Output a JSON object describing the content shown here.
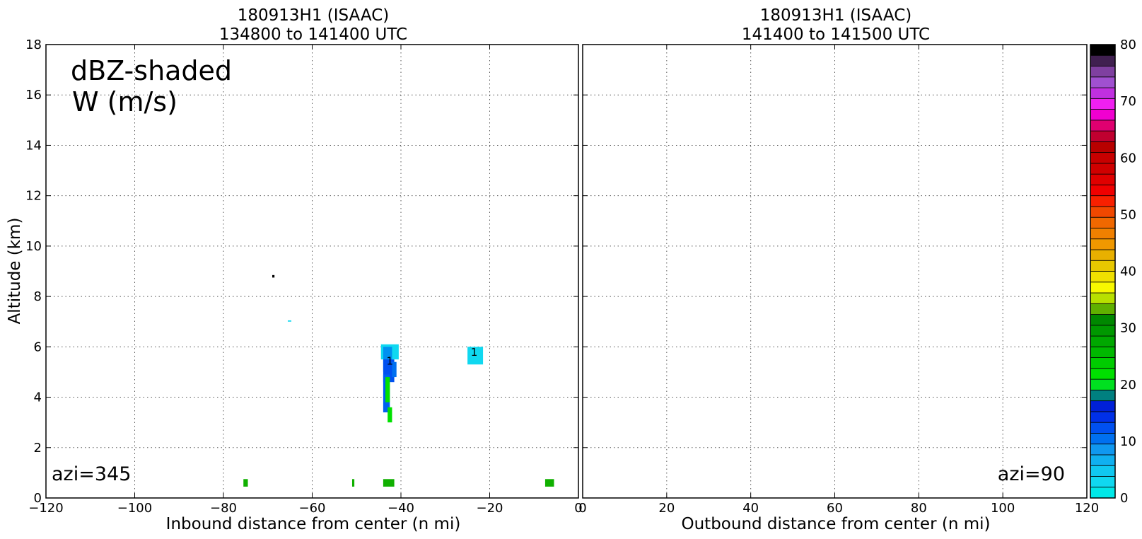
{
  "chart_data": [
    {
      "type": "heatmap",
      "panel": "left",
      "title_line1": "180913H1 (ISAAC)",
      "title_line2": "134800 to 141400 UTC",
      "xlabel": "Inbound distance from center (n mi)",
      "ylabel": "Altitude (km)",
      "xlim": [
        -120,
        0
      ],
      "ylim": [
        0,
        18
      ],
      "xticks": [
        "−120",
        "−100",
        "−80",
        "−60",
        "−40",
        "−20",
        "0"
      ],
      "xtick_values": [
        -120,
        -100,
        -80,
        -60,
        -40,
        -20,
        0
      ],
      "yticks": [
        "0",
        "2",
        "4",
        "6",
        "8",
        "10",
        "12",
        "14",
        "16",
        "18"
      ],
      "ytick_values": [
        0,
        2,
        4,
        6,
        8,
        10,
        12,
        14,
        16,
        18
      ],
      "grid": true,
      "annotation_main_line1": "dBZ-shaded",
      "annotation_main_line2": "W (m/s)",
      "annotation_azi": "azi=345",
      "contour_labels": [
        {
          "text": "1",
          "x": -42.5,
          "y": 5.3
        },
        {
          "text": "1",
          "x": -23.5,
          "y": 5.65
        }
      ],
      "cells": [
        {
          "x0": -44.5,
          "x1": -40.5,
          "y0": 5.5,
          "y1": 6.1,
          "color": "#10d8f0"
        },
        {
          "x0": -44.0,
          "x1": -42.0,
          "y0": 5.0,
          "y1": 6.0,
          "color": "#0090f0"
        },
        {
          "x0": -44.0,
          "x1": -41.5,
          "y0": 4.6,
          "y1": 5.5,
          "color": "#0050f0"
        },
        {
          "x0": -42.0,
          "x1": -41.0,
          "y0": 4.8,
          "y1": 5.4,
          "color": "#0070f0"
        },
        {
          "x0": -44.0,
          "x1": -42.5,
          "y0": 3.4,
          "y1": 4.9,
          "color": "#0060f0"
        },
        {
          "x0": -43.5,
          "x1": -42.5,
          "y0": 3.8,
          "y1": 4.8,
          "color": "#00e000"
        },
        {
          "x0": -43.0,
          "x1": -42.0,
          "y0": 3.0,
          "y1": 3.6,
          "color": "#00e000"
        },
        {
          "x0": -25.0,
          "x1": -21.5,
          "y0": 5.3,
          "y1": 6.0,
          "color": "#10d8f0"
        },
        {
          "x0": -69.0,
          "x1": -68.5,
          "y0": 8.75,
          "y1": 8.85,
          "color": "#000000"
        },
        {
          "x0": -65.5,
          "x1": -64.7,
          "y0": 7.0,
          "y1": 7.05,
          "color": "#10d8f0"
        },
        {
          "x0": -75.5,
          "x1": -74.5,
          "y0": 0.45,
          "y1": 0.75,
          "color": "#10b000"
        },
        {
          "x0": -51.0,
          "x1": -50.5,
          "y0": 0.45,
          "y1": 0.75,
          "color": "#10b000"
        },
        {
          "x0": -44.0,
          "x1": -41.5,
          "y0": 0.45,
          "y1": 0.75,
          "color": "#10b000"
        },
        {
          "x0": -7.5,
          "x1": -5.5,
          "y0": 0.45,
          "y1": 0.75,
          "color": "#10b000"
        }
      ]
    },
    {
      "type": "heatmap",
      "panel": "right",
      "title_line1": "180913H1 (ISAAC)",
      "title_line2": "141400 to 141500 UTC",
      "xlabel": "Outbound distance from center (n mi)",
      "ylabel": "",
      "xlim": [
        0,
        120
      ],
      "ylim": [
        0,
        18
      ],
      "xticks": [
        "0",
        "20",
        "40",
        "60",
        "80",
        "100",
        "120"
      ],
      "xtick_values": [
        0,
        20,
        40,
        60,
        80,
        100,
        120
      ],
      "grid": true,
      "annotation_azi": "azi=90",
      "cells": []
    }
  ],
  "colorbar": {
    "range": [
      0,
      80
    ],
    "ticks": [
      "0",
      "10",
      "20",
      "30",
      "40",
      "50",
      "60",
      "70",
      "80"
    ],
    "tick_values": [
      0,
      10,
      20,
      30,
      40,
      50,
      60,
      70,
      80
    ],
    "colors": [
      "#00e8e8",
      "#10d8f0",
      "#10c8f0",
      "#10b0f0",
      "#1098f0",
      "#0070f0",
      "#0050f0",
      "#0030e8",
      "#0020d8",
      "#008080",
      "#00e020",
      "#00e000",
      "#00cc00",
      "#00b800",
      "#00a800",
      "#009800",
      "#008800",
      "#60b000",
      "#b8e000",
      "#f8f800",
      "#f0e000",
      "#e8c800",
      "#e8b000",
      "#f09800",
      "#f08000",
      "#f06800",
      "#f04800",
      "#f82000",
      "#f00000",
      "#e00000",
      "#d00000",
      "#c80000",
      "#b80000",
      "#c00030",
      "#e00070",
      "#f000d0",
      "#f020f0",
      "#c030e0",
      "#a050d0",
      "#7f40a0",
      "#402050",
      "#000000"
    ]
  }
}
